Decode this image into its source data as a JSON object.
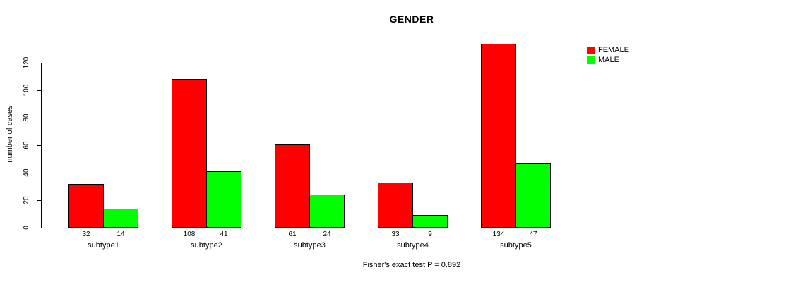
{
  "chart_data": {
    "type": "bar",
    "title": "GENDER",
    "xlabel": "",
    "ylabel": "number of cases",
    "categories": [
      "subtype1",
      "subtype2",
      "subtype3",
      "subtype4",
      "subtype5"
    ],
    "series": [
      {
        "name": "FEMALE",
        "color": "#FF0000",
        "values": [
          32,
          108,
          61,
          33,
          134
        ]
      },
      {
        "name": "MALE",
        "color": "#00FF00",
        "values": [
          14,
          41,
          24,
          9,
          47
        ]
      }
    ],
    "yticks": [
      0,
      20,
      40,
      60,
      80,
      100,
      120
    ],
    "ylim": [
      0,
      120
    ],
    "grid": false,
    "legend_position": "top-right",
    "bar_value_labels": true,
    "bar_border_color": "#000000",
    "annotation": "Fisher's exact test P = 0.892"
  }
}
